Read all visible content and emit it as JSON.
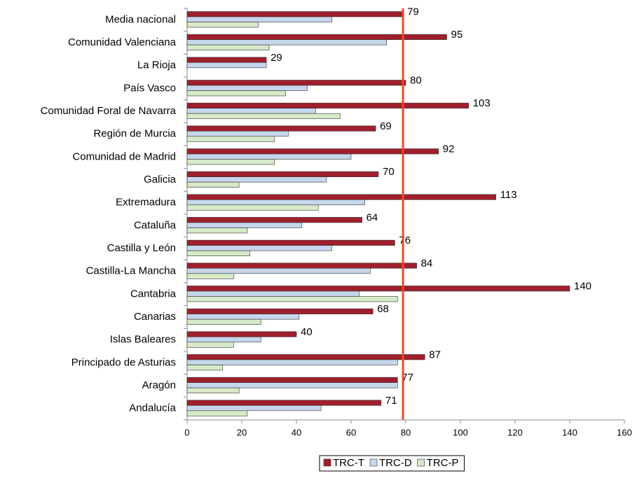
{
  "chart_data": {
    "type": "hbar",
    "categories": [
      "Media nacional",
      "Comunidad Valenciana",
      "La Rioja",
      "País Vasco",
      "Comunidad Foral de Navarra",
      "Región de Murcia",
      "Comunidad de Madrid",
      "Galicia",
      "Extremadura",
      "Cataluña",
      "Castilla y León",
      "Castilla-La Mancha",
      "Cantabria",
      "Canarias",
      "Islas Baleares",
      "Principado de Asturias",
      "Aragón",
      "Andalucía"
    ],
    "series": [
      {
        "name": "TRC-T",
        "color": "#a01f2d",
        "values": [
          79,
          95,
          29,
          80,
          103,
          69,
          92,
          70,
          113,
          64,
          76,
          84,
          140,
          68,
          40,
          87,
          77,
          71
        ]
      },
      {
        "name": "TRC-D",
        "color": "#c6d6ec",
        "values": [
          53,
          73,
          29,
          44,
          47,
          37,
          60,
          51,
          65,
          42,
          53,
          67,
          63,
          41,
          27,
          77,
          77,
          49
        ]
      },
      {
        "name": "TRC-P",
        "color": "#d6eac8",
        "values": [
          26,
          30,
          null,
          36,
          56,
          32,
          32,
          19,
          48,
          22,
          23,
          17,
          77,
          27,
          17,
          13,
          19,
          22
        ]
      }
    ],
    "xlim": [
      0,
      160
    ],
    "xticks": [
      0,
      20,
      40,
      60,
      80,
      100,
      120,
      140,
      160
    ],
    "reference_line_color": "#f04a24"
  }
}
